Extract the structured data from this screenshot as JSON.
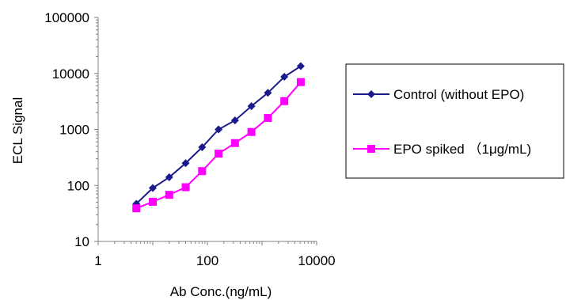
{
  "chart_data": {
    "type": "line",
    "xlabel": "Ab Conc.(ng/mL)",
    "ylabel": "ECL Signal",
    "x_scale": "log",
    "y_scale": "log",
    "xlim": [
      1,
      10000
    ],
    "ylim": [
      10,
      100000
    ],
    "x_ticks": [
      "1",
      "100",
      "10000"
    ],
    "y_ticks": [
      "10",
      "100",
      "1000",
      "10000",
      "100000"
    ],
    "grid": false,
    "legend_position": "right",
    "series": [
      {
        "name": "Control (without EPO)",
        "color": "#1a1a8c",
        "marker": "diamond",
        "x": [
          5,
          10,
          20,
          40,
          80,
          160,
          320,
          640,
          1280,
          2560,
          5120
        ],
        "y": [
          47,
          90,
          140,
          250,
          480,
          1000,
          1450,
          2600,
          4500,
          8700,
          13500
        ]
      },
      {
        "name": "EPO spiked （1μg/mL)",
        "color": "#ff00ff",
        "marker": "square",
        "x": [
          5,
          10,
          20,
          40,
          80,
          160,
          320,
          640,
          1280,
          2560,
          5120
        ],
        "y": [
          39,
          51,
          68,
          93,
          180,
          370,
          570,
          900,
          1600,
          3200,
          7000
        ]
      }
    ]
  }
}
